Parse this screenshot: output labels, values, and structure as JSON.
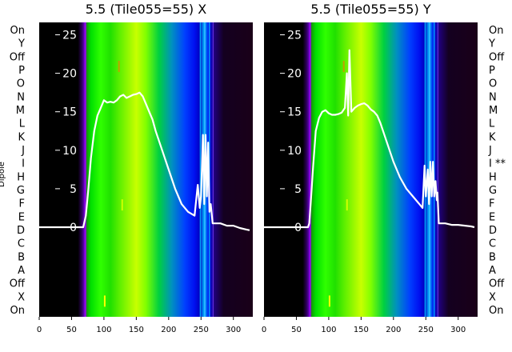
{
  "chart_data": [
    {
      "type": "heatmap",
      "title": "5.5 (Tile055=55) X",
      "xlabel": "",
      "ylabel": "Dipole",
      "xlim": [
        0,
        330
      ],
      "ylim": [
        -13.5,
        27.5
      ],
      "xticks": [
        0,
        50,
        100,
        150,
        200,
        250,
        300
      ],
      "yticks": [
        0,
        5,
        10,
        15,
        20,
        25
      ],
      "row_labels": [
        "On",
        "X",
        "Off",
        "A",
        "B",
        "C",
        "D",
        "E",
        "F",
        "G",
        "H",
        "I",
        "J",
        "K",
        "L",
        "M",
        "N",
        "O",
        "P",
        "Off",
        "Y",
        "On"
      ],
      "series": [
        {
          "x": [
            0,
            40,
            60,
            68,
            72,
            76,
            80,
            85,
            90,
            95,
            100,
            105,
            110,
            115,
            120,
            125,
            130,
            135,
            140,
            145,
            150,
            155,
            160,
            165,
            170,
            175,
            180,
            190,
            200,
            210,
            220,
            230,
            240,
            245,
            248,
            250,
            253,
            255,
            257,
            259,
            261,
            263,
            265,
            268,
            270,
            275,
            280,
            290,
            300,
            310,
            320,
            325
          ],
          "y": [
            0,
            0,
            0,
            0,
            1.5,
            5,
            9,
            12.5,
            14.5,
            15.5,
            16.5,
            16.2,
            16.3,
            16.2,
            16.5,
            17,
            17.2,
            16.8,
            17,
            17.2,
            17.3,
            17.5,
            17,
            16,
            15,
            14,
            12.5,
            10,
            7.5,
            5,
            3,
            2,
            1.5,
            5.5,
            2.5,
            4,
            12,
            3,
            12,
            4,
            11,
            2,
            3,
            0.5,
            0.5,
            0.5,
            0.5,
            0.2,
            0.2,
            -0.1,
            -0.3,
            -0.4
          ]
        }
      ]
    },
    {
      "type": "heatmap",
      "title": "5.5 (Tile055=55) Y",
      "xlabel": "",
      "ylabel": "",
      "xlim": [
        0,
        330
      ],
      "ylim": [
        -13.5,
        27.5
      ],
      "xticks": [
        0,
        50,
        100,
        150,
        200,
        250,
        300
      ],
      "yticks": [
        0,
        5,
        10,
        15,
        20,
        25
      ],
      "row_labels": [
        "On",
        "X",
        "Off",
        "A",
        "B",
        "C",
        "D",
        "E",
        "F",
        "G",
        "H",
        "I **",
        "J",
        "K",
        "L",
        "M",
        "N",
        "O",
        "P",
        "Off",
        "Y",
        "On"
      ],
      "series": [
        {
          "x": [
            0,
            40,
            60,
            68,
            70,
            72,
            76,
            80,
            85,
            90,
            95,
            100,
            105,
            110,
            115,
            120,
            125,
            128,
            130,
            132,
            135,
            140,
            145,
            150,
            155,
            160,
            165,
            170,
            175,
            180,
            190,
            200,
            210,
            220,
            230,
            240,
            245,
            248,
            250,
            253,
            255,
            257,
            259,
            261,
            263,
            265,
            267,
            268,
            270,
            280,
            290,
            300,
            320,
            325
          ],
          "y": [
            0,
            0,
            0,
            0,
            0.5,
            3,
            8,
            12.5,
            14.2,
            15,
            15.2,
            14.8,
            14.6,
            14.6,
            14.7,
            14.9,
            15.5,
            20,
            14.5,
            23,
            15,
            15.5,
            15.8,
            16,
            16.1,
            15.8,
            15.3,
            15,
            14.5,
            13.5,
            11,
            8.5,
            6.5,
            5,
            4,
            3,
            2.5,
            8,
            4,
            7.5,
            3,
            8.5,
            4,
            8.5,
            4,
            6,
            3.5,
            4.5,
            0.5,
            0.5,
            0.3,
            0.3,
            0.1,
            0
          ]
        }
      ]
    }
  ],
  "colors": {
    "heat_black": "#000000",
    "heat_purple": "#6b00c8",
    "heat_green": "#00e000",
    "heat_yellow": "#c8ff00",
    "heat_blue": "#0010f0",
    "heat_cyan": "#00b4ff",
    "heat_dark_purple": "#1a0018",
    "line": "#ffffff"
  }
}
